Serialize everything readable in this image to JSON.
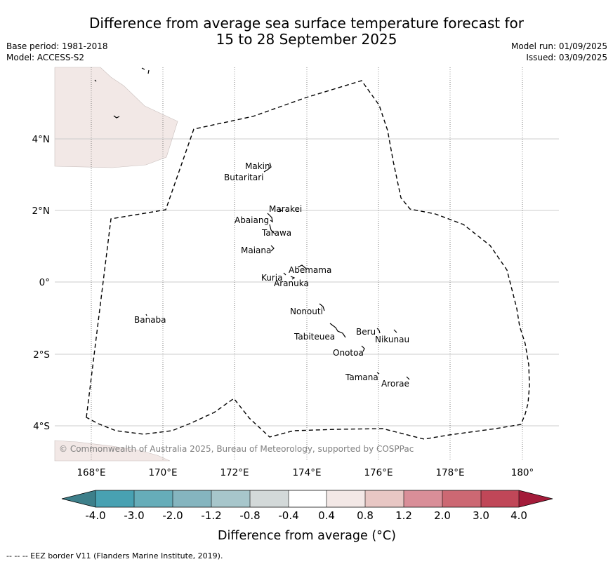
{
  "header": {
    "title_line1": "Difference from average sea surface temperature forecast for",
    "title_line2": "15 to 28 September 2025",
    "base_period": "Base period: 1981-2018",
    "model": "Model: ACCESS-S2",
    "model_run": "Model run: 01/09/2025",
    "issued": "Issued: 03/09/2025"
  },
  "map": {
    "x_ticks": [
      "168°E",
      "170°E",
      "172°E",
      "174°E",
      "176°E",
      "178°E",
      "180°"
    ],
    "y_ticks": [
      "4°N",
      "2°N",
      "0°",
      "2°S",
      "4°S"
    ],
    "copyright": "© Commonwealth of Australia 2025, Bureau of Meteorology, supported by COSPPac",
    "land_color": "#f2e8e6",
    "islands": [
      "Makin",
      "Butaritari",
      "Marakei",
      "Abaiang",
      "Tarawa",
      "Maiana",
      "Abemama",
      "Kuria",
      "Aranuka",
      "Nonouti",
      "Banaba",
      "Beru",
      "Nikunau",
      "Tabiteuea",
      "Onotoa",
      "Tamana",
      "Arorae"
    ]
  },
  "colorbar": {
    "tick_labels": [
      "-4.0",
      "-3.0",
      "-2.0",
      "-1.2",
      "-0.8",
      "-0.4",
      "0.4",
      "0.8",
      "1.2",
      "2.0",
      "3.0",
      "4.0"
    ],
    "colors": [
      "#3d7f8a",
      "#48a1b2",
      "#66adb9",
      "#85b5bf",
      "#a7c6cb",
      "#d3d9d9",
      "#ffffff",
      "#f3e8e6",
      "#e8c7c4",
      "#d98e98",
      "#cc6873",
      "#c04758",
      "#a41c3a"
    ],
    "label": "Difference from average (°C)"
  },
  "footer": {
    "eez_note": "--  --  -- EEZ border V11 (Flanders Marine Institute, 2019)."
  }
}
